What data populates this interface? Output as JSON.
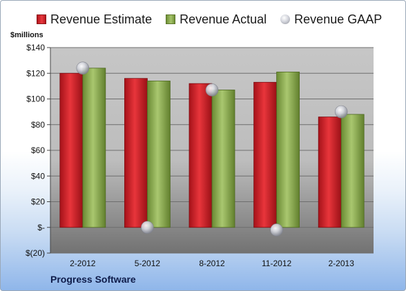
{
  "chart_data": {
    "type": "bar",
    "ylabel": "$millions",
    "footer": "Progress Software",
    "categories": [
      "2-2012",
      "5-2012",
      "8-2012",
      "11-2012",
      "2-2013"
    ],
    "series": [
      {
        "name": "Revenue Estimate",
        "type": "bar",
        "color": "#d12a2f",
        "values": [
          120,
          116,
          112,
          113,
          86
        ]
      },
      {
        "name": "Revenue Actual",
        "type": "bar",
        "color": "#8aaa4f",
        "values": [
          124,
          114,
          107,
          121,
          88
        ]
      },
      {
        "name": "Revenue GAAP",
        "type": "scatter",
        "color": "#c8cad0",
        "values": [
          124,
          0,
          107,
          -2,
          90
        ]
      }
    ],
    "ylim": [
      -20,
      140
    ],
    "yticks": [
      -20,
      0,
      20,
      40,
      60,
      80,
      100,
      120,
      140
    ],
    "ytick_labels": [
      "$(20)",
      "$-",
      "$20",
      "$40",
      "$60",
      "$80",
      "$100",
      "$120",
      "$140"
    ],
    "grid": true,
    "legend_position": "top"
  }
}
